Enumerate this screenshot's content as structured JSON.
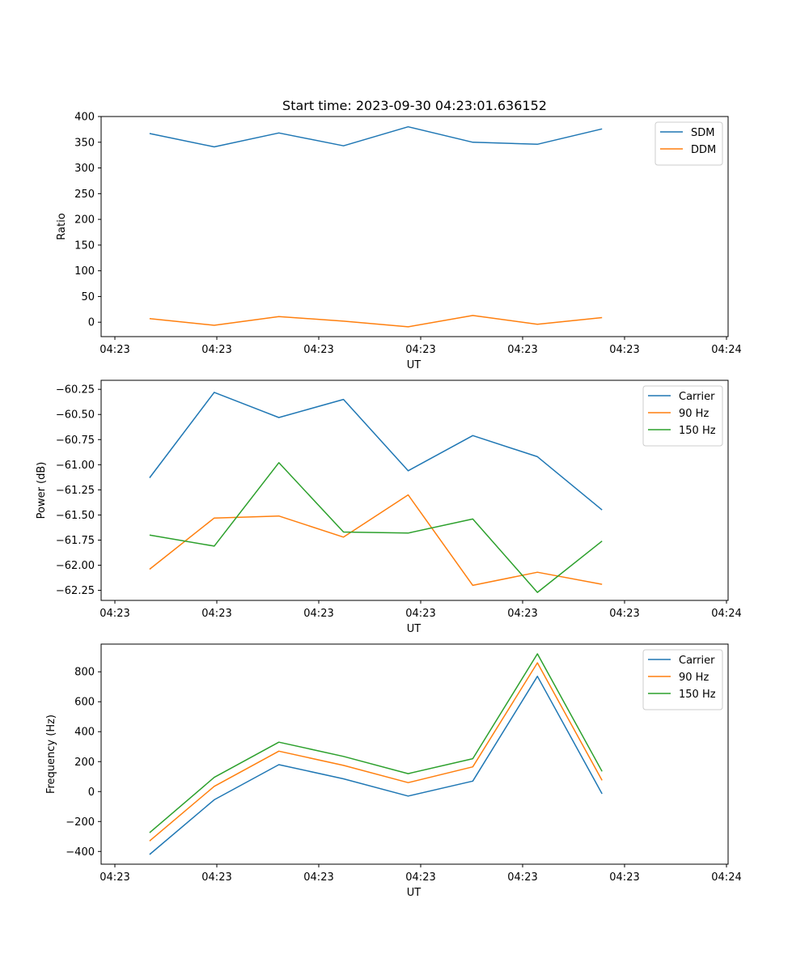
{
  "chart_data": [
    {
      "type": "line",
      "title": "Start time: 2023-09-30 04:23:01.636152",
      "xlabel": "UT",
      "ylabel": "Ratio",
      "x_tick_labels": [
        "04:23",
        "04:23",
        "04:23",
        "04:23",
        "04:23",
        "04:23",
        "04:24"
      ],
      "y_ticks": [
        0,
        50,
        100,
        150,
        200,
        250,
        300,
        350,
        400
      ],
      "y_tick_labels": [
        "0",
        "50",
        "100",
        "150",
        "200",
        "250",
        "300",
        "350",
        "400"
      ],
      "xlim": [
        0.5,
        10.2
      ],
      "ylim": [
        -28,
        400
      ],
      "x": [
        1.25,
        2.25,
        3.25,
        4.25,
        5.25,
        6.25,
        7.25,
        8.25
      ],
      "legend_position": "top-right",
      "series": [
        {
          "name": "SDM",
          "color": "#1f77b4",
          "values": [
            367,
            341,
            368,
            343,
            380,
            350,
            346,
            376
          ]
        },
        {
          "name": "DDM",
          "color": "#ff7f0e",
          "values": [
            7,
            -6,
            11,
            2,
            -9,
            13,
            -4,
            9
          ]
        }
      ]
    },
    {
      "type": "line",
      "title": "",
      "xlabel": "UT",
      "ylabel": "Power (dB)",
      "x_tick_labels": [
        "04:23",
        "04:23",
        "04:23",
        "04:23",
        "04:23",
        "04:23",
        "04:24"
      ],
      "y_ticks": [
        -62.25,
        -62.0,
        -61.75,
        -61.5,
        -61.25,
        -61.0,
        -60.75,
        -60.5,
        -60.25
      ],
      "y_tick_labels": [
        "−62.25",
        "−62.00",
        "−61.75",
        "−61.50",
        "−61.25",
        "−61.00",
        "−60.75",
        "−60.50",
        "−60.25"
      ],
      "xlim": [
        0.5,
        10.2
      ],
      "ylim": [
        -62.35,
        -60.16
      ],
      "x": [
        1.25,
        2.25,
        3.25,
        4.25,
        5.25,
        6.25,
        7.25,
        8.25
      ],
      "legend_position": "top-right",
      "series": [
        {
          "name": "Carrier",
          "color": "#1f77b4",
          "values": [
            -61.13,
            -60.28,
            -60.53,
            -60.35,
            -61.06,
            -60.71,
            -60.92,
            -61.45
          ]
        },
        {
          "name": "90 Hz",
          "color": "#ff7f0e",
          "values": [
            -62.04,
            -61.53,
            -61.51,
            -61.72,
            -61.3,
            -62.2,
            -62.07,
            -62.19
          ]
        },
        {
          "name": "150 Hz",
          "color": "#2ca02c",
          "values": [
            -61.7,
            -61.81,
            -60.98,
            -61.67,
            -61.68,
            -61.54,
            -62.27,
            -61.76
          ]
        }
      ]
    },
    {
      "type": "line",
      "title": "",
      "xlabel": "UT",
      "ylabel": "Frequency (Hz)",
      "x_tick_labels": [
        "04:23",
        "04:23",
        "04:23",
        "04:23",
        "04:23",
        "04:23",
        "04:24"
      ],
      "y_ticks": [
        -400,
        -200,
        0,
        200,
        400,
        600,
        800
      ],
      "y_tick_labels": [
        "−400",
        "−200",
        "0",
        "200",
        "400",
        "600",
        "800"
      ],
      "xlim": [
        0.5,
        10.2
      ],
      "ylim": [
        -485,
        985
      ],
      "x": [
        1.25,
        2.25,
        3.25,
        4.25,
        5.25,
        6.25,
        7.25,
        8.25
      ],
      "legend_position": "top-right",
      "series": [
        {
          "name": "Carrier",
          "color": "#1f77b4",
          "values": [
            -420,
            -55,
            180,
            85,
            -30,
            70,
            770,
            -15
          ]
        },
        {
          "name": "90 Hz",
          "color": "#ff7f0e",
          "values": [
            -330,
            35,
            270,
            175,
            60,
            165,
            860,
            75
          ]
        },
        {
          "name": "150 Hz",
          "color": "#2ca02c",
          "values": [
            -275,
            95,
            330,
            235,
            120,
            220,
            920,
            135
          ]
        }
      ]
    }
  ]
}
